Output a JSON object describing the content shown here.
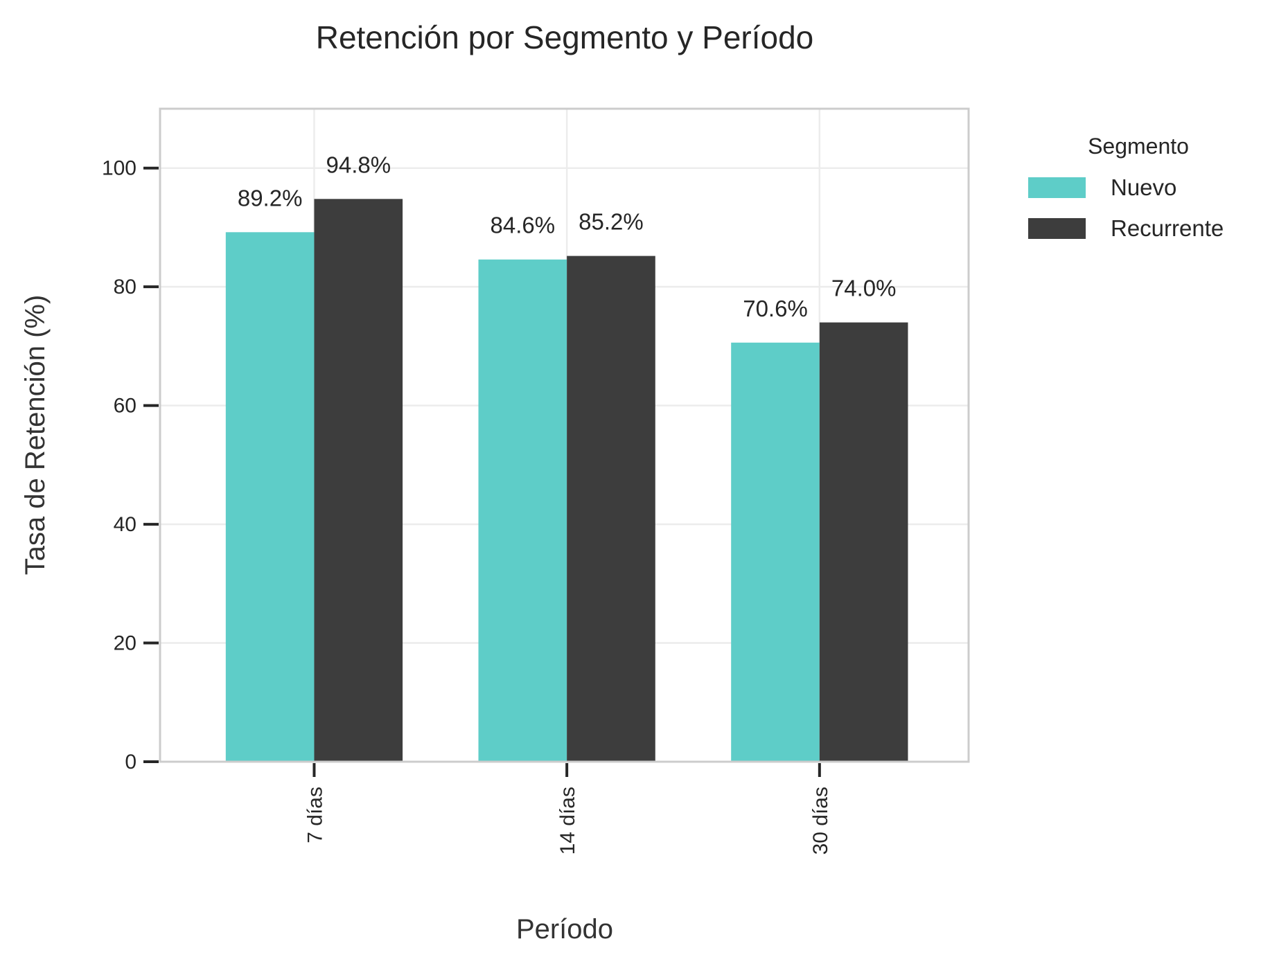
{
  "chart_data": {
    "type": "bar",
    "title": "Retención por Segmento y Período",
    "xlabel": "Período",
    "ylabel": "Tasa de Retención (%)",
    "categories": [
      "7 días",
      "14 días",
      "30 días"
    ],
    "series": [
      {
        "name": "Nuevo",
        "values": [
          89.2,
          84.6,
          70.6
        ],
        "color": "#5ecdc8",
        "value_labels": [
          "89.2%",
          "84.6%",
          "70.6%"
        ]
      },
      {
        "name": "Recurrente",
        "values": [
          94.8,
          85.2,
          74.0
        ],
        "color": "#3d3d3d",
        "value_labels": [
          "94.8%",
          "85.2%",
          "74.0%"
        ]
      }
    ],
    "ylim": [
      0,
      110
    ],
    "yticks": [
      0,
      20,
      40,
      60,
      80,
      100
    ],
    "ytick_labels": [
      "0",
      "20",
      "40",
      "60",
      "80",
      "100"
    ],
    "grid": true,
    "legend": {
      "title": "Segmento",
      "placement": "outside-right"
    },
    "x_tick_rotation": "vertical"
  }
}
